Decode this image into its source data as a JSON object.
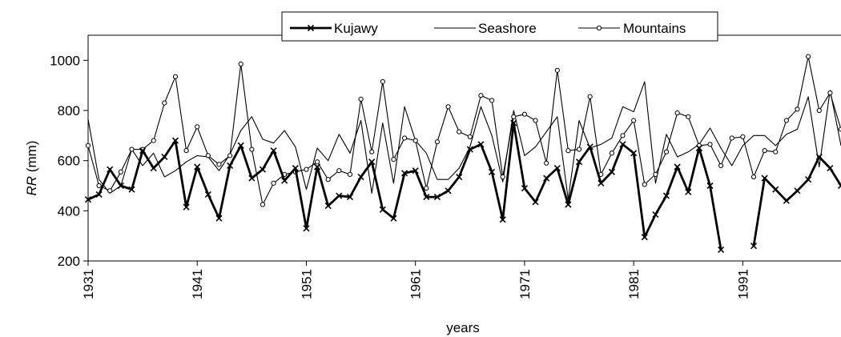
{
  "chart_data": {
    "type": "line",
    "title": "",
    "xlabel": "years",
    "ylabel_italic": "RR",
    "ylabel_unit": " (mm)",
    "xlim": [
      1931,
      2000
    ],
    "ylim": [
      200,
      1100
    ],
    "yticks": [
      200,
      400,
      600,
      800,
      1000
    ],
    "xticks": [
      1931,
      1941,
      1951,
      1961,
      1971,
      1981,
      1991
    ],
    "grid": false,
    "legend_position": "top-center",
    "x": [
      1931,
      1932,
      1933,
      1934,
      1935,
      1936,
      1937,
      1938,
      1939,
      1940,
      1941,
      1942,
      1943,
      1944,
      1945,
      1946,
      1947,
      1948,
      1949,
      1950,
      1951,
      1952,
      1953,
      1954,
      1955,
      1956,
      1957,
      1958,
      1959,
      1960,
      1961,
      1962,
      1963,
      1964,
      1965,
      1966,
      1967,
      1968,
      1969,
      1970,
      1971,
      1972,
      1973,
      1974,
      1975,
      1976,
      1977,
      1978,
      1979,
      1980,
      1981,
      1982,
      1983,
      1984,
      1985,
      1986,
      1987,
      1988,
      1989,
      1990,
      1991,
      1992,
      1993,
      1994,
      1995,
      1996,
      1997,
      1998,
      1999,
      2000
    ],
    "series": [
      {
        "name": "Kujawy",
        "style": "thick-cross",
        "color": "#000000",
        "values": [
          445,
          465,
          565,
          500,
          485,
          640,
          570,
          615,
          680,
          415,
          575,
          465,
          370,
          580,
          660,
          530,
          565,
          640,
          520,
          570,
          330,
          575,
          420,
          460,
          455,
          535,
          595,
          405,
          370,
          550,
          560,
          455,
          455,
          480,
          535,
          645,
          665,
          555,
          365,
          750,
          490,
          435,
          530,
          570,
          425,
          595,
          655,
          510,
          555,
          665,
          630,
          295,
          385,
          460,
          575,
          475,
          650,
          500,
          245,
          null,
          null,
          260,
          530,
          485,
          440,
          480,
          525,
          615,
          570,
          500
        ]
      },
      {
        "name": "Seashore",
        "style": "thin",
        "color": "#000000",
        "values": [
          765,
          525,
          470,
          500,
          645,
          580,
          630,
          535,
          560,
          595,
          620,
          615,
          560,
          625,
          720,
          775,
          685,
          670,
          720,
          655,
          485,
          650,
          600,
          705,
          630,
          760,
          470,
          750,
          510,
          815,
          680,
          630,
          525,
          525,
          570,
          655,
          815,
          700,
          515,
          800,
          620,
          655,
          715,
          775,
          445,
          760,
          650,
          665,
          690,
          815,
          795,
          915,
          510,
          705,
          615,
          635,
          665,
          730,
          650,
          580,
          660,
          700,
          700,
          660,
          705,
          725,
          855,
          575,
          880,
          660
        ]
      },
      {
        "name": "Mountains",
        "style": "thin-circle",
        "color": "#000000",
        "values": [
          660,
          500,
          480,
          555,
          645,
          645,
          680,
          830,
          935,
          640,
          735,
          620,
          585,
          620,
          985,
          645,
          425,
          510,
          545,
          555,
          565,
          595,
          525,
          560,
          545,
          845,
          635,
          915,
          605,
          690,
          680,
          490,
          675,
          815,
          715,
          695,
          860,
          840,
          535,
          775,
          785,
          760,
          590,
          960,
          640,
          645,
          855,
          545,
          630,
          700,
          760,
          505,
          545,
          635,
          790,
          775,
          660,
          665,
          580,
          690,
          695,
          535,
          640,
          635,
          760,
          805,
          1015,
          800,
          870,
          725
        ]
      }
    ]
  }
}
